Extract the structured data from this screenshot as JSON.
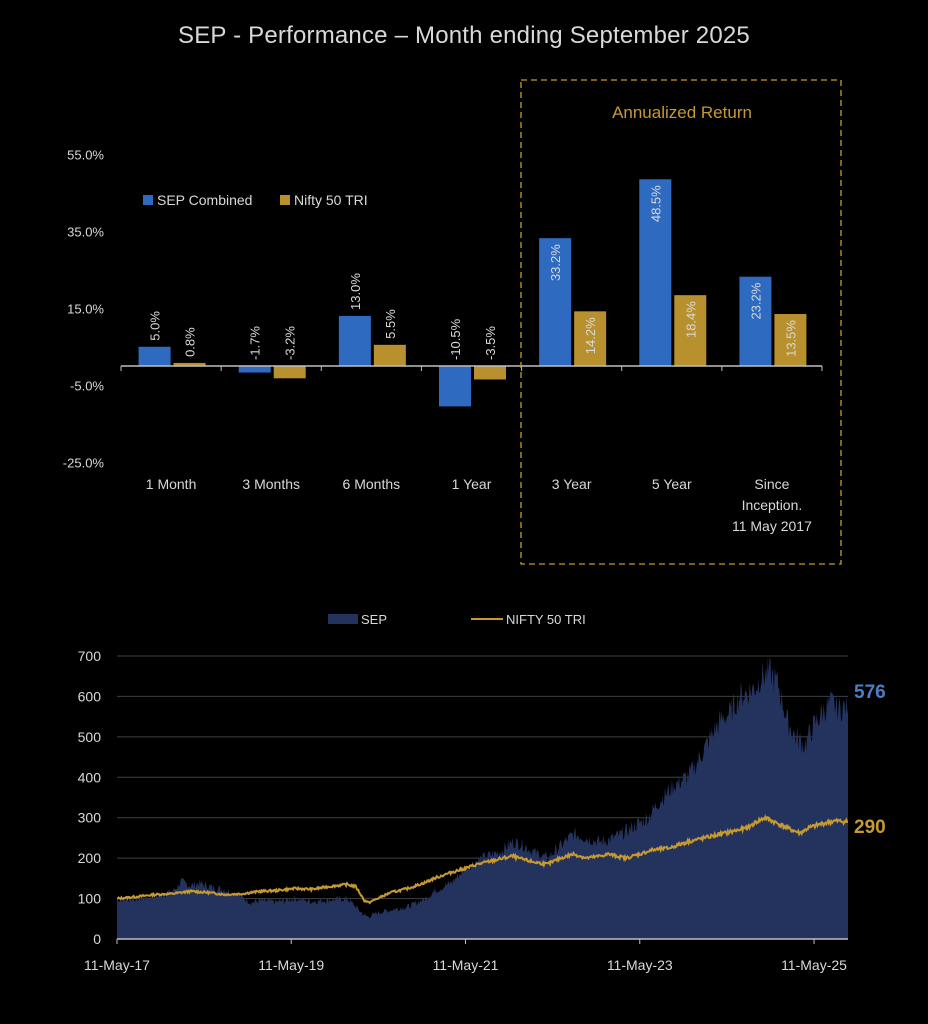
{
  "page": {
    "title": "SEP - Performance – Month ending September 2025"
  },
  "colors": {
    "background": "#000000",
    "sep_bar": "#2e6bc0",
    "nifty_bar": "#b8902e",
    "sep_area": "#24335e",
    "nifty_line": "#c69a30",
    "sep_end_label": "#4a7fc4",
    "nifty_end_label": "#c69a30",
    "annualized_box": "#c69a30",
    "text": "#d9d9d9",
    "gridline": "#404040",
    "axis": "#bfbfbf"
  },
  "chart_data": [
    {
      "type": "bar",
      "title": "",
      "xlabel": "",
      "ylabel": "",
      "ylim": [
        -25,
        55
      ],
      "yticks": [
        55,
        35,
        15,
        -5,
        -25
      ],
      "ytick_labels": [
        "55.0%",
        "35.0%",
        "15.0%",
        "-5.0%",
        "-25.0%"
      ],
      "categories": [
        "1 Month",
        "3 Months",
        "6 Months",
        "1 Year",
        "3 Year",
        "5 Year",
        "Since Inception. 11 May 2017"
      ],
      "category_lines": [
        [
          "1 Month"
        ],
        [
          "3 Months"
        ],
        [
          "6 Months"
        ],
        [
          "1 Year"
        ],
        [
          "3 Year"
        ],
        [
          "5 Year"
        ],
        [
          "Since",
          "Inception.",
          "11 May 2017"
        ]
      ],
      "series": [
        {
          "name": "SEP Combined",
          "values": [
            5.0,
            -1.7,
            13.0,
            -10.5,
            33.2,
            48.5,
            23.2
          ],
          "labels": [
            "5.0%",
            "-1.7%",
            "13.0%",
            "-10.5%",
            "33.2%",
            "48.5%",
            "23.2%"
          ]
        },
        {
          "name": "Nifty 50 TRI",
          "values": [
            0.8,
            -3.2,
            5.5,
            -3.5,
            14.2,
            18.4,
            13.5
          ],
          "labels": [
            "0.8%",
            "-3.2%",
            "5.5%",
            "-3.5%",
            "14.2%",
            "18.4%",
            "13.5%"
          ]
        }
      ],
      "legend": {
        "position": "top-left",
        "entries": [
          "SEP Combined",
          "Nifty 50 TRI"
        ]
      },
      "annotation": {
        "text": "Annualized Return",
        "applies_to": [
          "3 Year",
          "5 Year",
          "Since Inception. 11 May 2017"
        ]
      },
      "grid": false
    },
    {
      "type": "area",
      "title": "",
      "xlabel": "",
      "ylabel": "",
      "ylim": [
        0,
        700
      ],
      "yticks": [
        0,
        100,
        200,
        300,
        400,
        500,
        600,
        700
      ],
      "xlim_years": [
        2017.36,
        2025.75
      ],
      "xticks": [
        2017.36,
        2019.36,
        2021.36,
        2023.36,
        2025.36
      ],
      "xtick_labels": [
        "11-May-17",
        "11-May-19",
        "11-May-21",
        "11-May-23",
        "11-May-25"
      ],
      "grid": true,
      "legend": {
        "position": "top-center",
        "entries": [
          "SEP",
          "NIFTY 50 TRI"
        ]
      },
      "end_labels": {
        "SEP": "576",
        "NIFTY 50 TRI": "290"
      },
      "series": [
        {
          "name": "SEP",
          "kind": "area",
          "x": [
            2017.36,
            2017.6,
            2017.8,
            2018.0,
            2018.1,
            2018.2,
            2018.3,
            2018.45,
            2018.6,
            2018.75,
            2018.9,
            2019.0,
            2019.2,
            2019.4,
            2019.6,
            2019.8,
            2020.0,
            2020.1,
            2020.2,
            2020.25,
            2020.35,
            2020.5,
            2020.7,
            2020.9,
            2021.0,
            2021.2,
            2021.36,
            2021.5,
            2021.6,
            2021.75,
            2021.9,
            2022.0,
            2022.15,
            2022.3,
            2022.45,
            2022.6,
            2022.75,
            2022.9,
            2023.0,
            2023.15,
            2023.3,
            2023.45,
            2023.6,
            2023.75,
            2023.9,
            2024.0,
            2024.1,
            2024.2,
            2024.3,
            2024.4,
            2024.5,
            2024.6,
            2024.7,
            2024.75,
            2024.85,
            2024.95,
            2025.05,
            2025.15,
            2025.25,
            2025.35,
            2025.45,
            2025.55,
            2025.65,
            2025.75
          ],
          "y": [
            97,
            100,
            105,
            118,
            142,
            132,
            138,
            128,
            122,
            110,
            90,
            95,
            92,
            100,
            93,
            97,
            100,
            80,
            58,
            55,
            65,
            72,
            80,
            100,
            118,
            140,
            175,
            195,
            205,
            215,
            240,
            235,
            215,
            200,
            230,
            260,
            250,
            240,
            245,
            260,
            280,
            300,
            345,
            380,
            400,
            430,
            470,
            510,
            545,
            560,
            600,
            610,
            625,
            650,
            660,
            630,
            540,
            500,
            480,
            525,
            560,
            585,
            570,
            576
          ]
        },
        {
          "name": "NIFTY 50 TRI",
          "kind": "line",
          "x": [
            2017.36,
            2017.6,
            2017.8,
            2018.0,
            2018.2,
            2018.4,
            2018.6,
            2018.8,
            2019.0,
            2019.2,
            2019.4,
            2019.6,
            2019.8,
            2020.0,
            2020.1,
            2020.2,
            2020.25,
            2020.35,
            2020.5,
            2020.7,
            2020.9,
            2021.0,
            2021.2,
            2021.36,
            2021.5,
            2021.7,
            2021.9,
            2022.0,
            2022.15,
            2022.3,
            2022.45,
            2022.6,
            2022.75,
            2022.9,
            2023.0,
            2023.2,
            2023.36,
            2023.5,
            2023.7,
            2023.9,
            2024.0,
            2024.2,
            2024.4,
            2024.6,
            2024.7,
            2024.8,
            2024.95,
            2025.1,
            2025.2,
            2025.3,
            2025.45,
            2025.6,
            2025.75
          ],
          "y": [
            100,
            105,
            110,
            112,
            118,
            115,
            110,
            112,
            118,
            120,
            125,
            123,
            130,
            135,
            130,
            95,
            90,
            100,
            115,
            125,
            140,
            150,
            165,
            175,
            185,
            195,
            205,
            198,
            190,
            185,
            200,
            210,
            200,
            205,
            210,
            200,
            210,
            220,
            225,
            240,
            245,
            255,
            265,
            275,
            290,
            300,
            285,
            270,
            262,
            275,
            285,
            292,
            290
          ]
        }
      ]
    }
  ]
}
